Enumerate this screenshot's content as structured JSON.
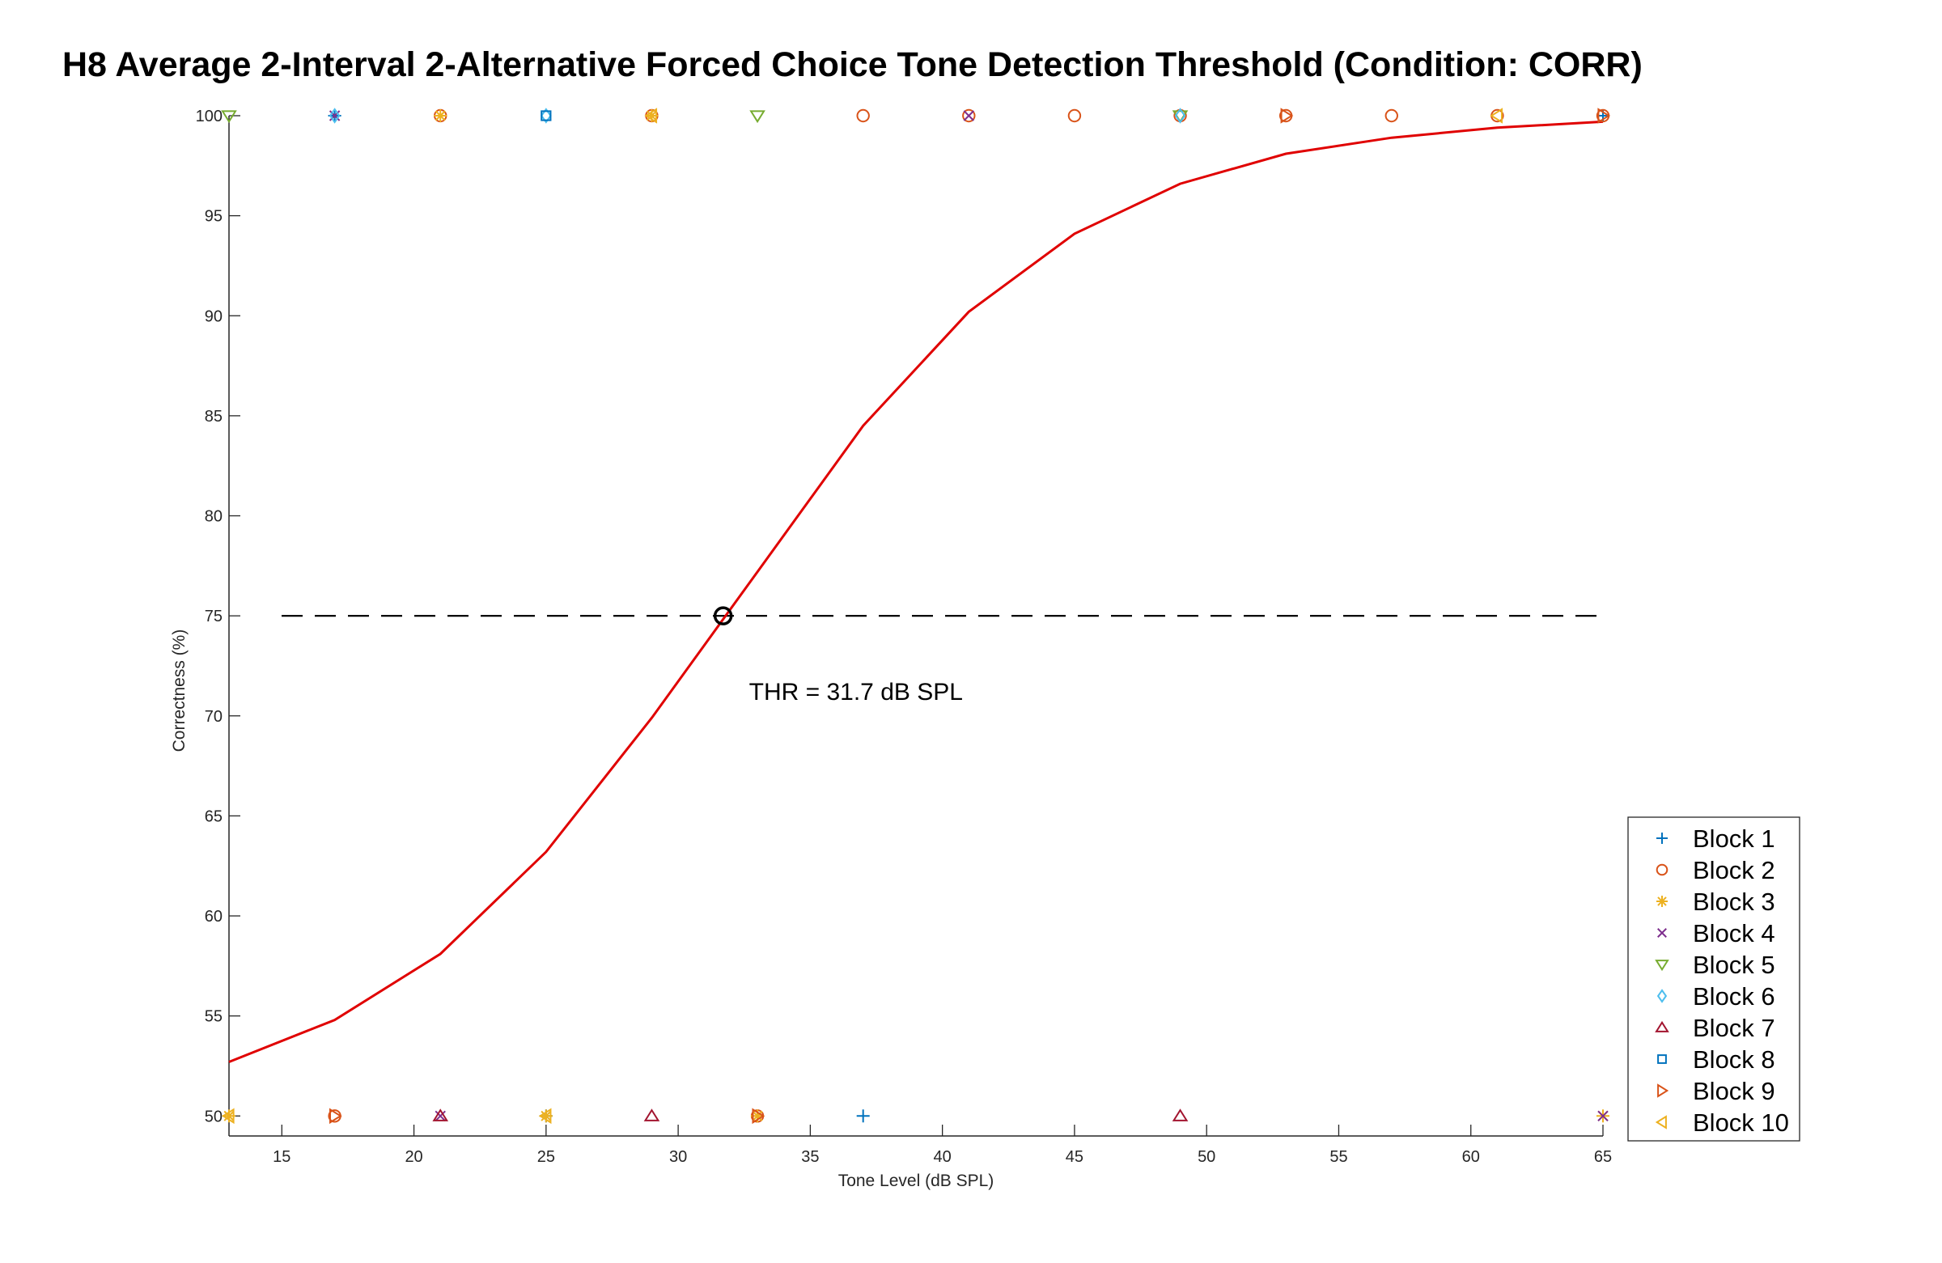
{
  "chart_data": {
    "type": "line",
    "title": "H8 Average 2-Interval 2-Alternative Forced Choice Tone Detection Threshold (Condition: CORR)",
    "xlabel": "Tone Level (dB SPL)",
    "ylabel": "Correctness (%)",
    "xlim": [
      13,
      65
    ],
    "ylim": [
      49,
      100
    ],
    "xticks": [
      15,
      20,
      25,
      30,
      35,
      40,
      45,
      50,
      55,
      60,
      65
    ],
    "yticks": [
      50,
      55,
      60,
      65,
      70,
      75,
      80,
      85,
      90,
      95,
      100
    ],
    "grid": false,
    "legend_position": "bottom-right-outside",
    "threshold": {
      "x": 31.7,
      "y": 75,
      "label": "THR = 31.7 dB SPL"
    },
    "fit": {
      "color": "#e00000",
      "x": [
        13,
        17,
        21,
        25,
        29,
        33,
        37,
        41,
        45,
        49,
        53,
        57,
        61,
        65
      ],
      "y": [
        52.7,
        54.8,
        58.1,
        63.2,
        69.9,
        77.2,
        84.5,
        90.2,
        94.1,
        96.6,
        98.1,
        98.9,
        99.4,
        99.7
      ]
    },
    "series": [
      {
        "name": "Block 1",
        "marker": "plus",
        "color": "#0072bd",
        "x": [
          17,
          25,
          37,
          65
        ],
        "y": [
          100,
          50,
          50,
          100
        ]
      },
      {
        "name": "Block 2",
        "marker": "circle",
        "color": "#d95319",
        "x": [
          17,
          21,
          29,
          33,
          37,
          41,
          45,
          49,
          53,
          57,
          61,
          65
        ],
        "y": [
          50,
          100,
          100,
          50,
          100,
          100,
          100,
          100,
          100,
          100,
          100,
          100
        ]
      },
      {
        "name": "Block 3",
        "marker": "asterisk",
        "color": "#edb120",
        "x": [
          13,
          21,
          25,
          29,
          33,
          65
        ],
        "y": [
          50,
          100,
          50,
          100,
          50,
          50
        ]
      },
      {
        "name": "Block 4",
        "marker": "x",
        "color": "#7e2f8e",
        "x": [
          17,
          21,
          41,
          65
        ],
        "y": [
          100,
          50,
          100,
          50
        ]
      },
      {
        "name": "Block 5",
        "marker": "triangle-down",
        "color": "#77ac30",
        "x": [
          13,
          33,
          49
        ],
        "y": [
          100,
          100,
          100
        ]
      },
      {
        "name": "Block 6",
        "marker": "diamond",
        "color": "#4dbeee",
        "x": [
          17,
          25,
          49
        ],
        "y": [
          100,
          100,
          100
        ]
      },
      {
        "name": "Block 7",
        "marker": "triangle-up",
        "color": "#a2142f",
        "x": [
          21,
          29,
          49
        ],
        "y": [
          50,
          50,
          50
        ]
      },
      {
        "name": "Block 8",
        "marker": "square",
        "color": "#0072bd",
        "x": [
          25
        ],
        "y": [
          100
        ]
      },
      {
        "name": "Block 9",
        "marker": "triangle-right",
        "color": "#d95319",
        "x": [
          17,
          33,
          53,
          65
        ],
        "y": [
          50,
          50,
          100,
          100
        ]
      },
      {
        "name": "Block 10",
        "marker": "triangle-left",
        "color": "#edb120",
        "x": [
          13,
          25,
          29,
          61
        ],
        "y": [
          50,
          50,
          100,
          100
        ]
      }
    ]
  }
}
